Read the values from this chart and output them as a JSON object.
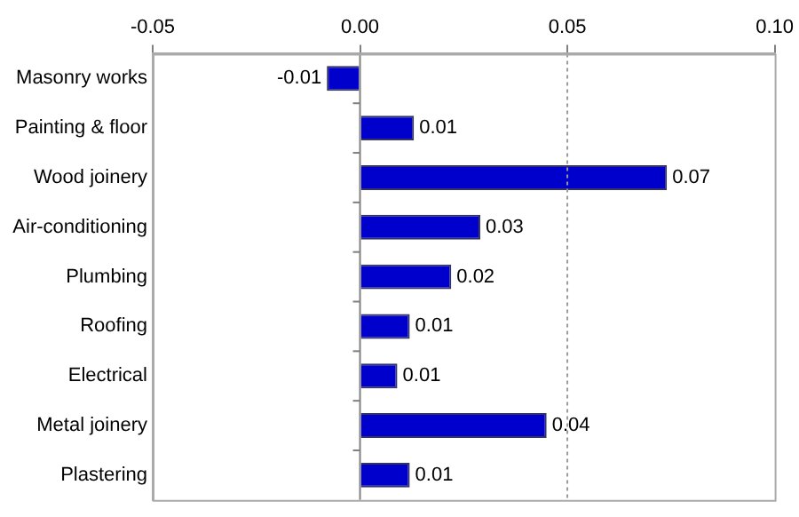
{
  "chart_data": {
    "type": "bar",
    "orientation": "horizontal",
    "categories": [
      "Masonry works",
      "Painting & floor",
      "Wood joinery",
      "Air-conditioning",
      "Plumbing",
      "Roofing",
      "Electrical",
      "Metal joinery",
      "Plastering"
    ],
    "values": [
      -0.008,
      0.013,
      0.074,
      0.029,
      0.022,
      0.012,
      0.009,
      0.045,
      0.012
    ],
    "value_labels": [
      "-0.01",
      "0.01",
      "0.07",
      "0.03",
      "0.02",
      "0.01",
      "0.01",
      "0.04",
      "0.01"
    ],
    "color": "#0000cc",
    "xlim": [
      -0.05,
      0.1
    ],
    "xticks": [
      {
        "value": -0.05,
        "label": "-0.05"
      },
      {
        "value": 0,
        "label": "0.00"
      },
      {
        "value": 0.05,
        "label": "0.05"
      },
      {
        "value": 0.1,
        "label": "0.10"
      }
    ],
    "ref_lines": [
      {
        "axis": "x",
        "value": 0.05,
        "line_style": "dotted",
        "color": "#999999"
      }
    ]
  }
}
